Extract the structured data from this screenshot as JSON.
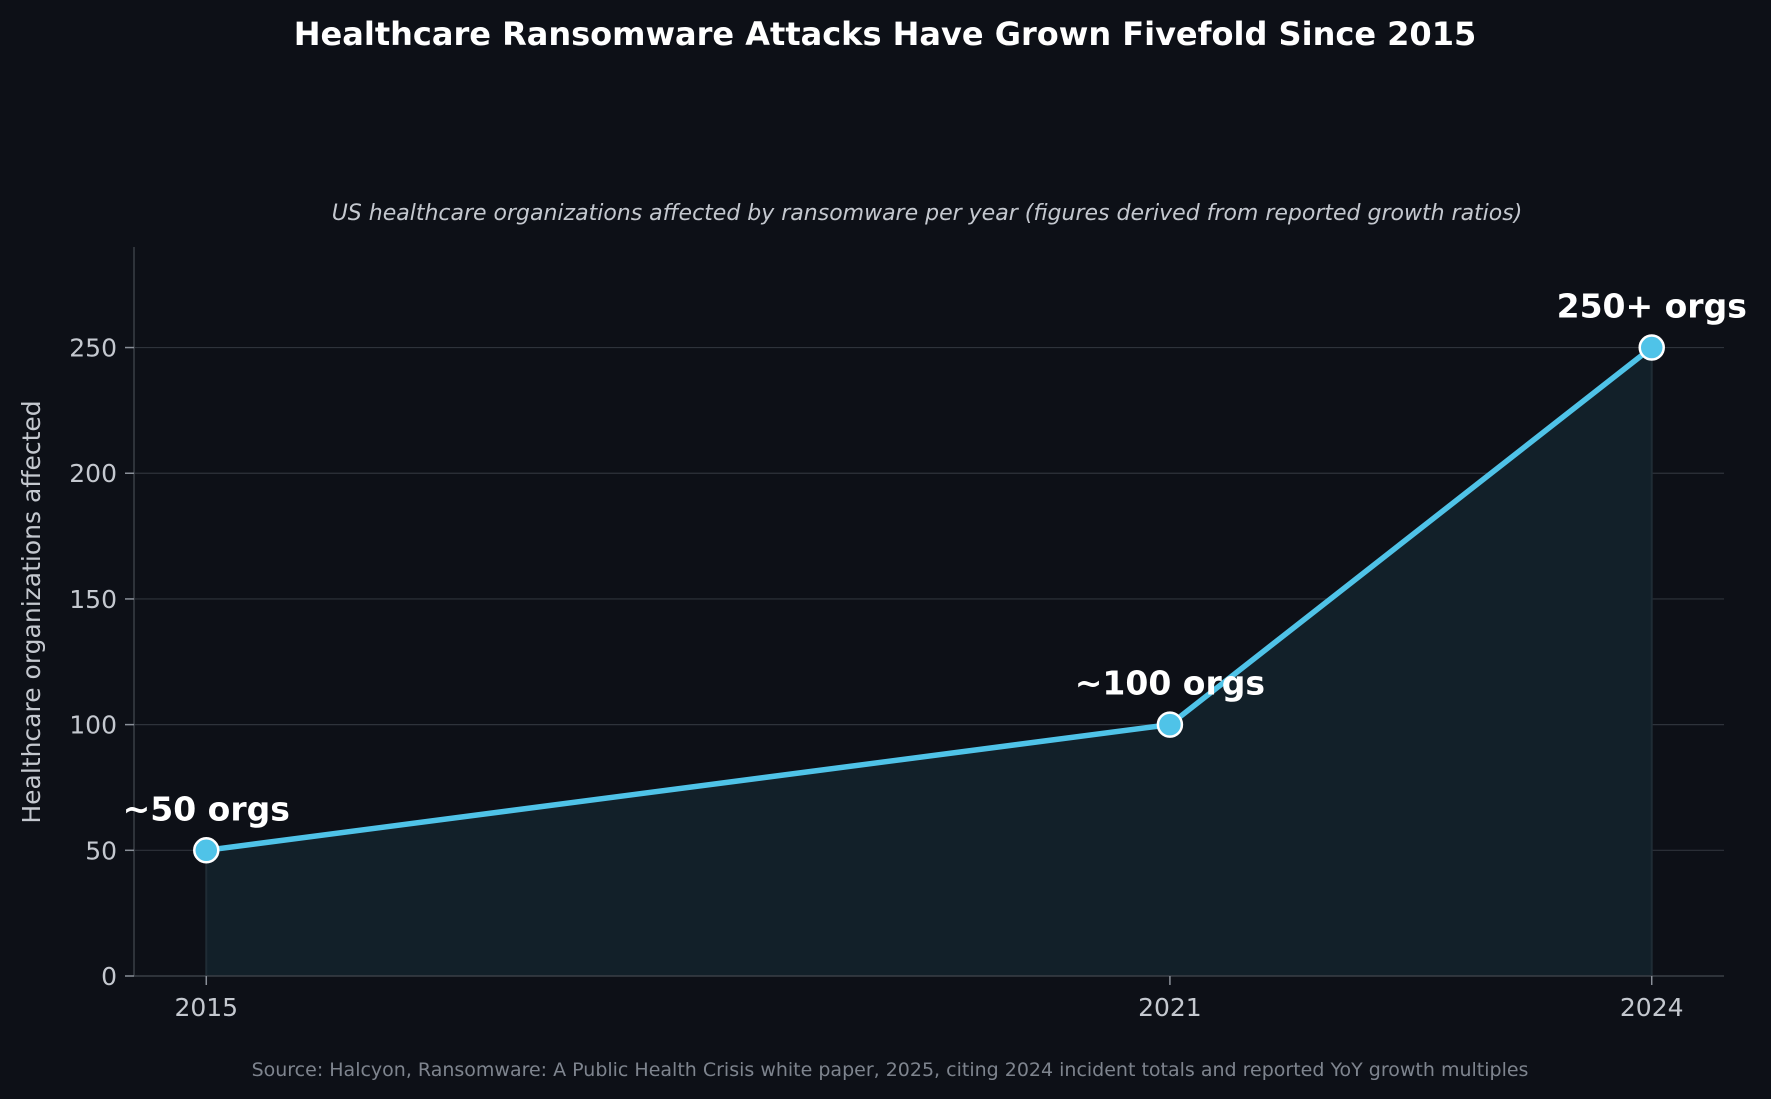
{
  "chart_data": {
    "type": "area",
    "title": "Healthcare Ransomware Attacks Have Grown Fivefold Since 2015",
    "subtitle": "US healthcare organizations affected by ransomware per year (figures derived from reported growth ratios)",
    "xlabel": "",
    "ylabel": "Healthcare organizations affected",
    "x": [
      2015,
      2021,
      2024
    ],
    "x_tick_labels": [
      "2015",
      "2021",
      "2024"
    ],
    "xlim": [
      2014.55,
      2024.45
    ],
    "ylim": [
      0,
      290
    ],
    "y_ticks": [
      0,
      50,
      100,
      150,
      200,
      250
    ],
    "y_tick_labels": [
      "0",
      "50",
      "100",
      "150",
      "200",
      "250"
    ],
    "grid": true,
    "series": [
      {
        "values": [
          50,
          100,
          250
        ],
        "data_labels": [
          "~50 orgs",
          "~100 orgs",
          "250+ orgs"
        ],
        "color": "#4fc3e8"
      }
    ],
    "source": "Source: Halcyon, Ransomware: A Public Health Crisis white paper, 2025, citing 2024 incident totals and reported YoY growth multiples"
  },
  "colors": {
    "background": "#0d1017",
    "line": "#4fc3e8",
    "fill": "#122029",
    "grid": "#2e333b",
    "axis": "#3a3f47"
  }
}
